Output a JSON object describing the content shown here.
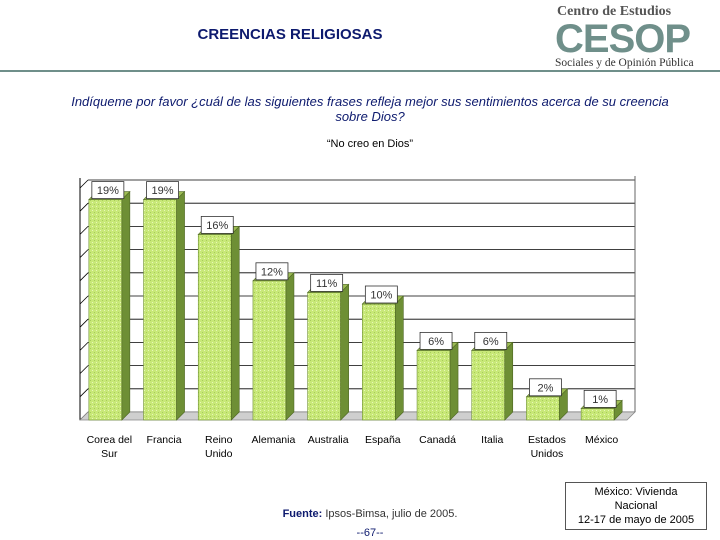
{
  "header": {
    "title": "CREENCIAS RELIGIOSAS",
    "logo_top": "Centro de Estudios",
    "logo_mid": "CESOP",
    "logo_bottom": "Sociales y de Opinión Pública"
  },
  "question": "Indíqueme por favor ¿cuál de las siguientes frases refleja mejor sus sentimientos acerca de su creencia sobre Dios?",
  "chart_data": {
    "type": "bar",
    "title": "“No creo en Dios”",
    "categories": [
      [
        "Corea del",
        "Sur"
      ],
      [
        "Francia"
      ],
      [
        "Reino",
        "Unido"
      ],
      [
        "Alemania"
      ],
      [
        "Australia"
      ],
      [
        "España"
      ],
      [
        "Canadá"
      ],
      [
        "Italia"
      ],
      [
        "Estados",
        "Unidos"
      ],
      [
        "México"
      ]
    ],
    "values": [
      19,
      19,
      16,
      12,
      11,
      10,
      6,
      6,
      2,
      1
    ],
    "value_labels": [
      "19%",
      "19%",
      "16%",
      "12%",
      "11%",
      "10%",
      "6%",
      "6%",
      "2%",
      "1%"
    ],
    "ylim": [
      0,
      20
    ],
    "xlabel": "",
    "ylabel": "",
    "grid": true,
    "colors": {
      "bar_front": "#c8e878",
      "bar_side": "#6e8f35",
      "bar_top": "#9ebd55",
      "grid": "#000000"
    }
  },
  "footer": {
    "source_label": "Fuente:",
    "source_text": "Ipsos-Bimsa, julio de 2005.",
    "page": "--67--",
    "note_lines": [
      "México: Vivienda",
      "Nacional",
      "12-17 de mayo de 2005"
    ]
  },
  "colors": {
    "title": "#0d1a6e",
    "logo": "#6f8f8a",
    "rule": "#6f8f8a"
  }
}
